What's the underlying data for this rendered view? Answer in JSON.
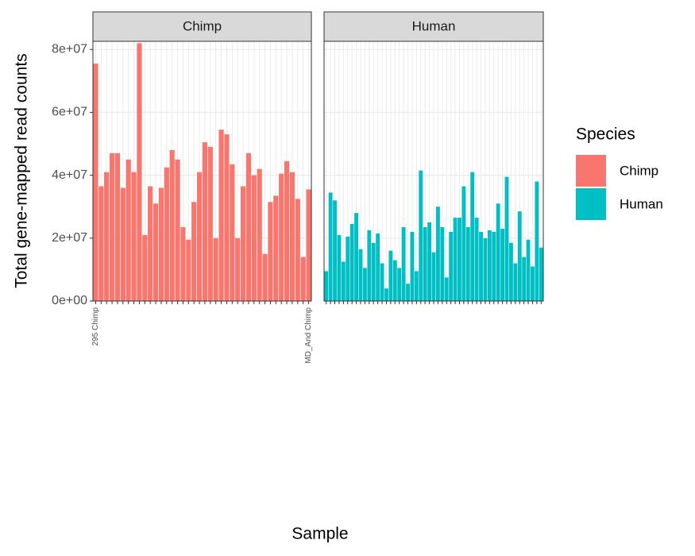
{
  "chart_data": {
    "type": "bar",
    "ylabel": "Total gene-mapped read counts",
    "xlabel": "Sample",
    "legend_title": "Species",
    "ylim": [
      0,
      82600000
    ],
    "yticks": [
      {
        "value": 0,
        "label": "0e+00"
      },
      {
        "value": 20000000,
        "label": "2e+07"
      },
      {
        "value": 40000000,
        "label": "4e+07"
      },
      {
        "value": 60000000,
        "label": "6e+07"
      },
      {
        "value": 80000000,
        "label": "8e+07"
      }
    ],
    "grid": true,
    "series": [
      {
        "name": "Chimp",
        "color": "#F8766D",
        "categories": [
          "295 Chimp",
          null,
          null,
          null,
          null,
          null,
          null,
          null,
          null,
          null,
          null,
          null,
          null,
          null,
          null,
          null,
          null,
          null,
          null,
          null,
          null,
          null,
          null,
          null,
          null,
          null,
          null,
          null,
          null,
          null,
          null,
          null,
          null,
          null,
          null,
          null,
          null,
          null,
          null,
          "MD_And Chimp"
        ],
        "values": [
          75500000,
          36500000,
          41000000,
          47000000,
          47000000,
          36000000,
          45000000,
          41000000,
          82000000,
          21000000,
          36500000,
          31000000,
          36000000,
          42500000,
          48000000,
          45000000,
          23500000,
          19500000,
          31500000,
          41000000,
          50500000,
          49000000,
          20000000,
          54500000,
          53000000,
          43500000,
          20000000,
          36500000,
          47000000,
          40000000,
          42000000,
          15000000,
          31500000,
          33500000,
          40500000,
          44500000,
          41000000,
          32500000,
          14000000,
          35500000
        ]
      },
      {
        "name": "Human",
        "color": "#00BFC4",
        "categories": [
          null,
          null,
          null,
          null,
          null,
          null,
          null,
          null,
          null,
          null,
          null,
          null,
          null,
          null,
          null,
          null,
          null,
          null,
          null,
          null,
          null,
          null,
          null,
          null,
          null,
          null,
          null,
          null,
          null,
          null,
          null,
          null,
          null,
          null,
          null,
          null,
          null,
          null,
          null,
          null,
          null,
          null,
          null,
          null,
          null,
          null,
          null,
          null,
          null,
          null,
          null
        ],
        "values": [
          9500000,
          34500000,
          32000000,
          21000000,
          12500000,
          20500000,
          24500000,
          28000000,
          16500000,
          10500000,
          22500000,
          18500000,
          21500000,
          12000000,
          4000000,
          16000000,
          13000000,
          10500000,
          23500000,
          5500000,
          22000000,
          9500000,
          41500000,
          23500000,
          25000000,
          15500000,
          30000000,
          23500000,
          7500000,
          22000000,
          26500000,
          26500000,
          36500000,
          23500000,
          41000000,
          26500000,
          22000000,
          20000000,
          22500000,
          22000000,
          31000000,
          23000000,
          39500000,
          18500000,
          12000000,
          28500000,
          14000000,
          19500000,
          11000000,
          38000000,
          17000000
        ]
      }
    ]
  }
}
